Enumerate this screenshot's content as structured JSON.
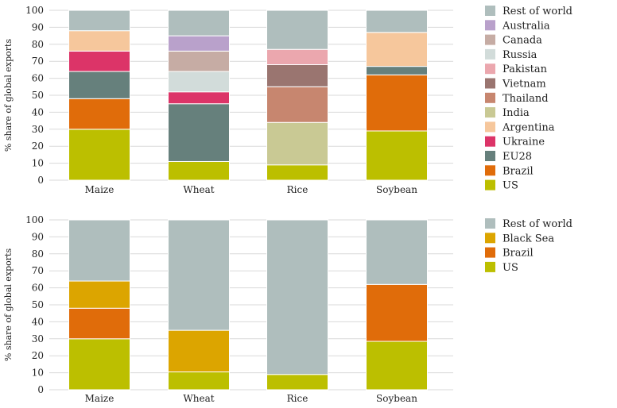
{
  "chart_data": [
    {
      "type": "bar",
      "stacked": true,
      "ylabel": "% share of global exports",
      "ylim": [
        0,
        100
      ],
      "yticks": [
        0,
        10,
        20,
        30,
        40,
        50,
        60,
        70,
        80,
        90,
        100
      ],
      "grid": true,
      "legend_position": "right",
      "categories": [
        "Maize",
        "Wheat",
        "Rice",
        "Soybean"
      ],
      "series": [
        {
          "name": "US",
          "color": "#bcbf00",
          "values": [
            30,
            11,
            9,
            29
          ]
        },
        {
          "name": "Brazil",
          "color": "#e06c0a",
          "values": [
            18,
            0,
            0,
            33
          ]
        },
        {
          "name": "EU28",
          "color": "#66807c",
          "values": [
            16,
            34,
            0,
            5
          ]
        },
        {
          "name": "Ukraine",
          "color": "#dc3468",
          "values": [
            12,
            7,
            0,
            0
          ]
        },
        {
          "name": "Argentina",
          "color": "#f6c79c",
          "values": [
            12,
            0,
            0,
            20
          ]
        },
        {
          "name": "India",
          "color": "#c9c994",
          "values": [
            0,
            0,
            25,
            0
          ]
        },
        {
          "name": "Thailand",
          "color": "#c7866f",
          "values": [
            0,
            0,
            21,
            0
          ]
        },
        {
          "name": "Vietnam",
          "color": "#9a7570",
          "values": [
            0,
            0,
            13,
            0
          ]
        },
        {
          "name": "Pakistan",
          "color": "#eba7ae",
          "values": [
            0,
            0,
            9,
            0
          ]
        },
        {
          "name": "Russia",
          "color": "#d2dcda",
          "values": [
            0,
            12,
            0,
            0
          ]
        },
        {
          "name": "Canada",
          "color": "#c6aca4",
          "values": [
            0,
            12,
            0,
            0
          ]
        },
        {
          "name": "Australia",
          "color": "#b9a1cb",
          "values": [
            0,
            9,
            0,
            0
          ]
        },
        {
          "name": "Rest of world",
          "color": "#afbebd",
          "values": [
            12,
            15,
            23,
            13
          ]
        }
      ]
    },
    {
      "type": "bar",
      "stacked": true,
      "ylabel": "% share of global exports",
      "ylim": [
        0,
        100
      ],
      "yticks": [
        0,
        10,
        20,
        30,
        40,
        50,
        60,
        70,
        80,
        90,
        100
      ],
      "grid": true,
      "legend_position": "right",
      "categories": [
        "Maize",
        "Wheat",
        "Rice",
        "Soybean"
      ],
      "series": [
        {
          "name": "US",
          "color": "#bcbf00",
          "values": [
            30,
            10.5,
            9,
            28.5
          ]
        },
        {
          "name": "Brazil",
          "color": "#e06c0a",
          "values": [
            18,
            0,
            0,
            33.5
          ]
        },
        {
          "name": "Black Sea",
          "color": "#dca500",
          "values": [
            16,
            24.5,
            0,
            0
          ]
        },
        {
          "name": "Rest of world",
          "color": "#afbebd",
          "values": [
            36,
            65,
            91,
            38
          ]
        }
      ]
    }
  ]
}
